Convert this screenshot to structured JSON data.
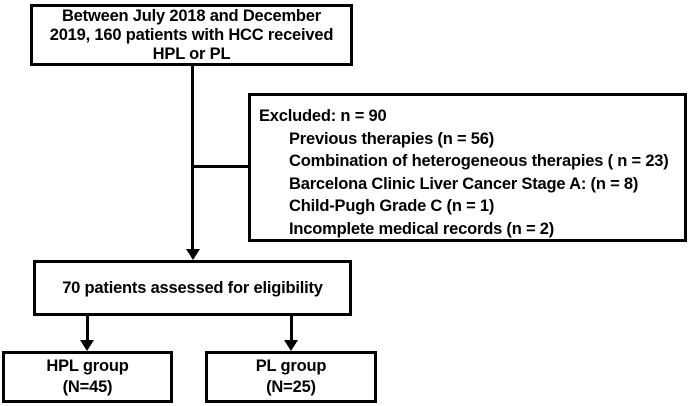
{
  "flowchart": {
    "colors": {
      "border": "#000000",
      "text": "#000000",
      "background": "#ffffff"
    },
    "enrollment": {
      "lines": [
        "Between July 2018 and December",
        "2019, 160 patients with HCC received",
        "HPL or PL"
      ]
    },
    "excluded": {
      "header": "Excluded: n = 90",
      "items": [
        "Previous therapies (n = 56)",
        "Combination of heterogeneous therapies ( n = 23)",
        "Barcelona Clinic Liver Cancer Stage A: (n = 8)",
        "Child-Pugh Grade C (n = 1)",
        "Incomplete medical records (n = 2)"
      ]
    },
    "assessed": {
      "text": "70 patients assessed for eligibility"
    },
    "hpl_group": {
      "lines": [
        "HPL group",
        "(N=45)"
      ]
    },
    "pl_group": {
      "lines": [
        "PL group",
        "(N=25)"
      ]
    }
  }
}
